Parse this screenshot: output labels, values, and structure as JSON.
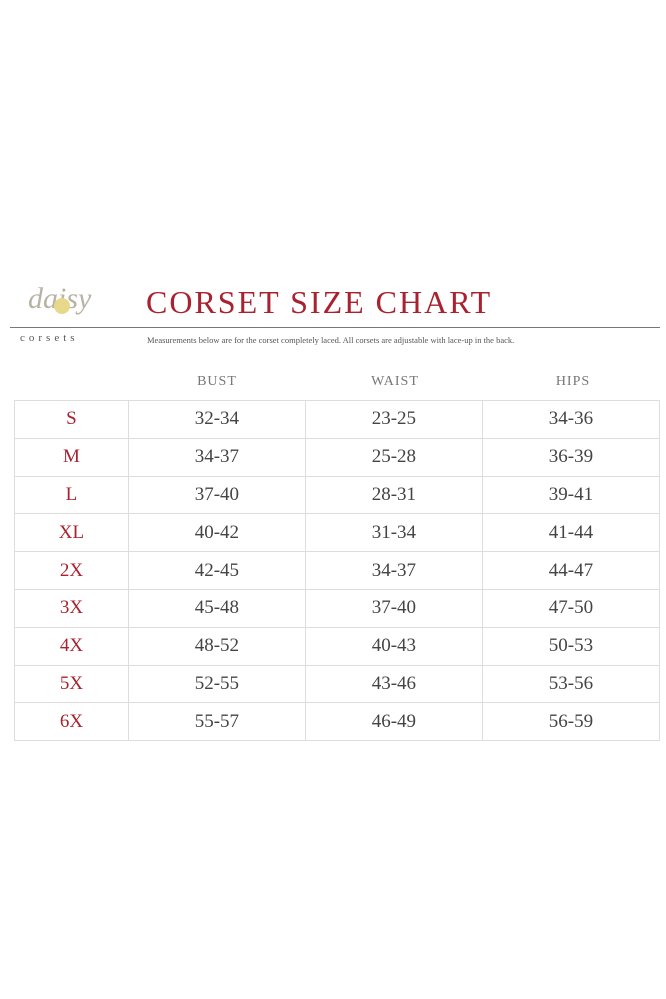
{
  "logo": {
    "script": "daisy",
    "word": "corsets"
  },
  "title": "CORSET SIZE CHART",
  "subtitle": "Measurements below are for the corset completely laced.  All corsets are adjustable with lace-up in the back.",
  "headers": [
    "BUST",
    "WAIST",
    "HIPS"
  ],
  "rows": [
    {
      "size": "S",
      "bust": "32-34",
      "waist": "23-25",
      "hips": "34-36"
    },
    {
      "size": "M",
      "bust": "34-37",
      "waist": "25-28",
      "hips": "36-39"
    },
    {
      "size": "L",
      "bust": "37-40",
      "waist": "28-31",
      "hips": "39-41"
    },
    {
      "size": "XL",
      "bust": "40-42",
      "waist": "31-34",
      "hips": "41-44"
    },
    {
      "size": "2X",
      "bust": "42-45",
      "waist": "34-37",
      "hips": "44-47"
    },
    {
      "size": "3X",
      "bust": "45-48",
      "waist": "37-40",
      "hips": "47-50"
    },
    {
      "size": "4X",
      "bust": "48-52",
      "waist": "40-43",
      "hips": "50-53"
    },
    {
      "size": "5X",
      "bust": "52-55",
      "waist": "43-46",
      "hips": "53-56"
    },
    {
      "size": "6X",
      "bust": "55-57",
      "waist": "46-49",
      "hips": "56-59"
    }
  ]
}
